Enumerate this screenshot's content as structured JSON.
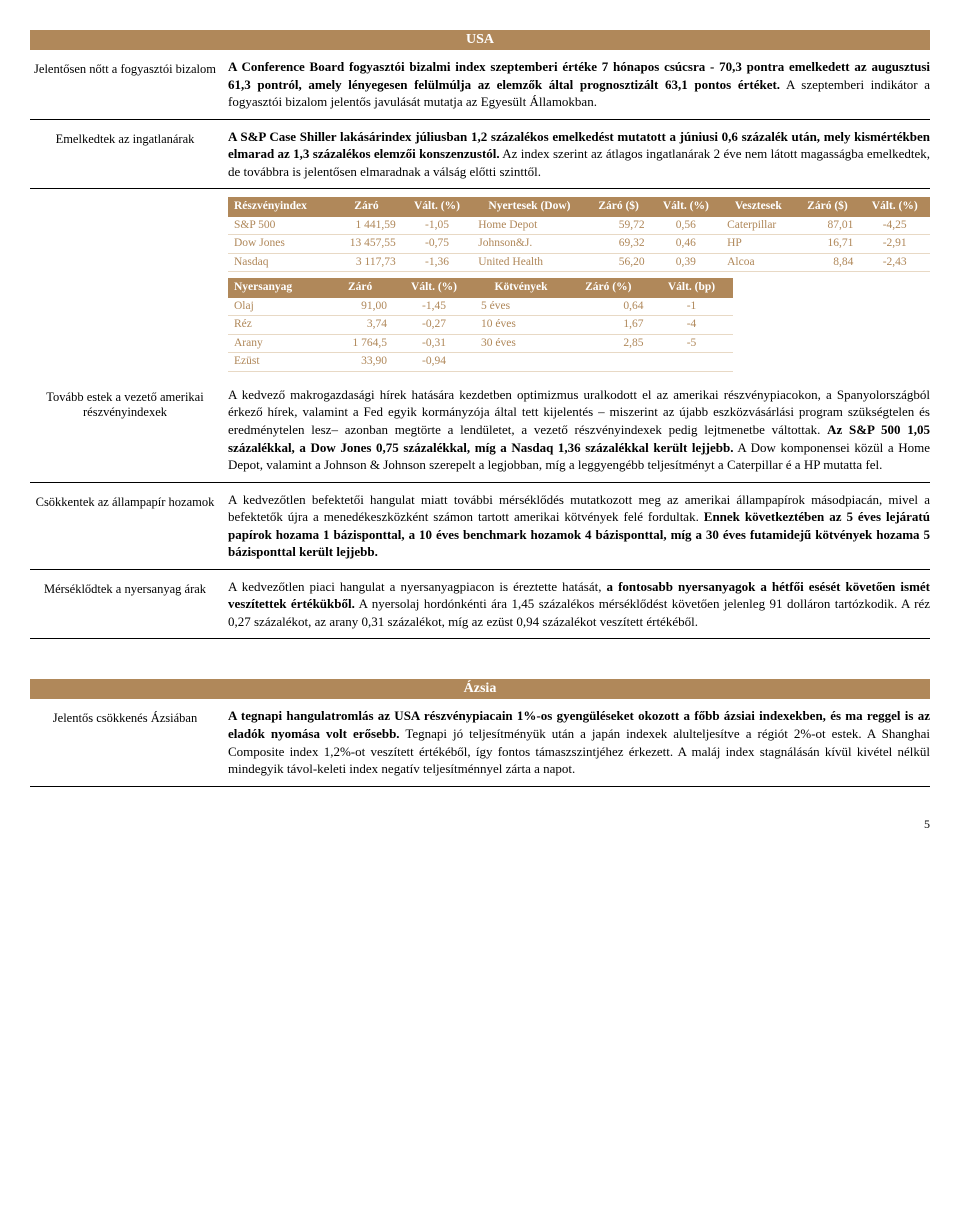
{
  "usa": {
    "header": "USA",
    "rows": [
      {
        "label": "Jelentősen nőtt a fogyasztói bizalom",
        "html": "<b>A Conference Board fogyasztói bizalmi index szeptemberi értéke 7 hónapos csúcsra - 70,3 pontra emelkedett az augusztusi 61,3 pontról, amely lényegesen felülmúlja az elemzők által prognosztizált 63,1 pontos értéket.</b> A szeptemberi indikátor a fogyasztói bizalom jelentős javulását mutatja az Egyesült Államokban."
      },
      {
        "label": "Emelkedtek az ingatlanárak",
        "html": "<b>A S&amp;P Case Shiller lakásárindex júliusban 1,2 százalékos emelkedést mutatott a júniusi 0,6 százalék után, mely kismértékben elmarad az 1,3 százalékos elemzői konszenzustól.</b> Az index szerint az átlagos ingatlanárak 2 éve nem látott magasságba emelkedtek, de továbbra is jelentősen elmaradnak a válság előtti szinttől."
      },
      {
        "label": "Tovább estek a vezető amerikai részvényindexek",
        "html": "A kedvező makrogazdasági hírek hatására kezdetben optimizmus uralkodott el az amerikai részvénypiacokon, a Spanyolországból érkező hírek, valamint a Fed egyik kormányzója által tett kijelentés – miszerint az újabb eszközvásárlási program szükségtelen és eredménytelen lesz– azonban megtörte a lendületet, a vezető részvényindexek pedig lejtmenetbe váltottak. <b>Az S&amp;P 500 1,05 százalékkal, a Dow Jones 0,75 százalékkal, míg a Nasdaq 1,36 százalékkal került lejjebb.</b> A Dow komponensei közül a Home Depot, valamint a Johnson &amp; Johnson szerepelt a legjobban, míg a leggyengébb teljesítményt a Caterpillar é a HP mutatta fel."
      },
      {
        "label": "Csökkentek az állampapír hozamok",
        "html": "A kedvezőtlen befektetői hangulat miatt további mérséklődés mutatkozott meg az amerikai állampapírok másodpiacán, mivel a befektetők újra a menedékeszközként számon tartott amerikai kötvények felé fordultak. <b>Ennek következtében az 5 éves lejáratú papírok hozama 1 bázisponttal, a 10 éves benchmark hozamok 4 bázisponttal, míg a 30 éves futamidejű kötvények hozama 5 bázisponttal került lejjebb.</b>"
      },
      {
        "label": "Mérséklődtek\na nyersanyag árak",
        "html": "A kedvezőtlen piaci hangulat a nyersanyagpiacon is éreztette hatását, <b>a fontosabb nyersanyagok a hétfői esését követően ismét veszítettek értékükből.</b> A nyersolaj hordónkénti ára 1,45 százalékos mérséklődést követően jelenleg 91 dolláron tartózkodik. A réz 0,27 százalékot, az arany 0,31 százalékot, míg az ezüst 0,94 százalékot veszített értékéből."
      }
    ],
    "table1": {
      "headers": [
        "Részvényindex",
        "Záró",
        "Vált. (%)",
        "Nyertesek (Dow)",
        "Záró ($)",
        "Vált. (%)",
        "Vesztesek",
        "Záró ($)",
        "Vált. (%)"
      ],
      "rows": [
        [
          "S&P 500",
          "1 441,59",
          "-1,05",
          "Home Depot",
          "59,72",
          "0,56",
          "Caterpillar",
          "87,01",
          "-4,25"
        ],
        [
          "Dow Jones",
          "13 457,55",
          "-0,75",
          "Johnson&J.",
          "69,32",
          "0,46",
          "HP",
          "16,71",
          "-2,91"
        ],
        [
          "Nasdaq",
          "3 117,73",
          "-1,36",
          "United Health",
          "56,20",
          "0,39",
          "Alcoa",
          "8,84",
          "-2,43"
        ]
      ]
    },
    "table2": {
      "headers": [
        "Nyersanyag",
        "Záró",
        "Vált. (%)",
        "Kötvények",
        "Záró (%)",
        "Vált. (bp)"
      ],
      "rows": [
        [
          "Olaj",
          "91,00",
          "-1,45",
          "5 éves",
          "0,64",
          "-1"
        ],
        [
          "Réz",
          "3,74",
          "-0,27",
          "10 éves",
          "1,67",
          "-4"
        ],
        [
          "Arany",
          "1 764,5",
          "-0,31",
          "30 éves",
          "2,85",
          "-5"
        ],
        [
          "Ezüst",
          "33,90",
          "-0,94",
          "",
          "",
          ""
        ]
      ]
    }
  },
  "asia": {
    "header": "Ázsia",
    "rows": [
      {
        "label": "Jelentős csökkenés Ázsiában",
        "html": "<b>A tegnapi hangulatromlás az USA részvénypiacain 1%-os gyengüléseket okozott a főbb ázsiai indexekben, és ma reggel is az eladók nyomása volt erősebb.</b> Tegnapi jó teljesítményük után a japán indexek alulteljesítve a régiót 2%-ot estek. A Shanghai Composite index 1,2%-ot veszített értékéből, így fontos támaszszintjéhez érkezett. A maláj index stagnálásán kívül kivétel nélkül mindegyik távol-keleti index negatív teljesítménnyel zárta a napot."
      }
    ]
  },
  "page_number": "5",
  "colors": {
    "header_bg": "#b0885a",
    "header_fg": "#ffffff",
    "table_text": "#b0885a",
    "row_border": "#e8d9c5"
  }
}
